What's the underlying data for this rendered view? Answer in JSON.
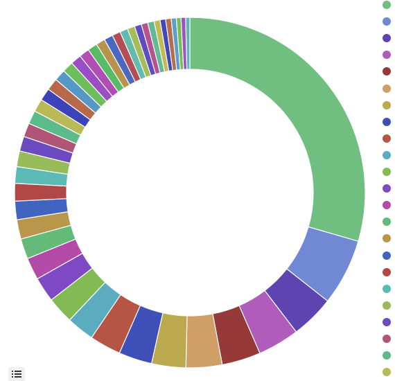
{
  "ui": {
    "legend_toggle_icon": "list-icon"
  },
  "chart_data": {
    "type": "pie",
    "variant": "donut",
    "values": [
      34.6,
      7.2,
      4.7,
      4.5,
      4.2,
      3.9,
      3.7,
      3.6,
      3.4,
      3.0,
      2.9,
      2.7,
      2.4,
      2.2,
      2.1,
      2.0,
      1.9,
      1.8,
      1.7,
      1.6,
      1.5,
      1.45,
      1.4,
      1.35,
      1.3,
      1.25,
      1.2,
      1.15,
      1.1,
      1.05,
      1.0,
      0.95,
      0.9,
      0.85,
      0.8,
      0.75,
      0.7,
      0.7,
      0.65,
      0.6,
      0.6,
      0.55,
      0.5,
      0.5,
      0.45
    ],
    "colors": [
      "#71bf80",
      "#7189d4",
      "#5d44b0",
      "#b05cba",
      "#963a39",
      "#d09f67",
      "#bba94f",
      "#3f4fb8",
      "#b55644",
      "#5bacbf",
      "#84ba54",
      "#7d4ac4",
      "#b34aa8",
      "#64ba78",
      "#b8974a",
      "#4164c0",
      "#b04848",
      "#5cbab6",
      "#98bb5a",
      "#6b4bbf",
      "#b05478",
      "#5dbb8a",
      "#bab957",
      "#3c43b8",
      "#b8694a",
      "#5598c6",
      "#6fbe5c",
      "#9a4dc4",
      "#b14eb3",
      "#58bb68",
      "#b8934d",
      "#4a68c1",
      "#b24e54",
      "#62bbaf",
      "#a5bd5a",
      "#5f4cc0",
      "#b65290",
      "#63bb96",
      "#c1bb55",
      "#4147bb",
      "#b46e4c",
      "#5a9fc7",
      "#78bc58",
      "#9c54c4",
      "#58b8c0"
    ],
    "legend": {
      "position": "right",
      "entries": []
    },
    "start_angle_deg": 0,
    "direction": "clockwise"
  }
}
